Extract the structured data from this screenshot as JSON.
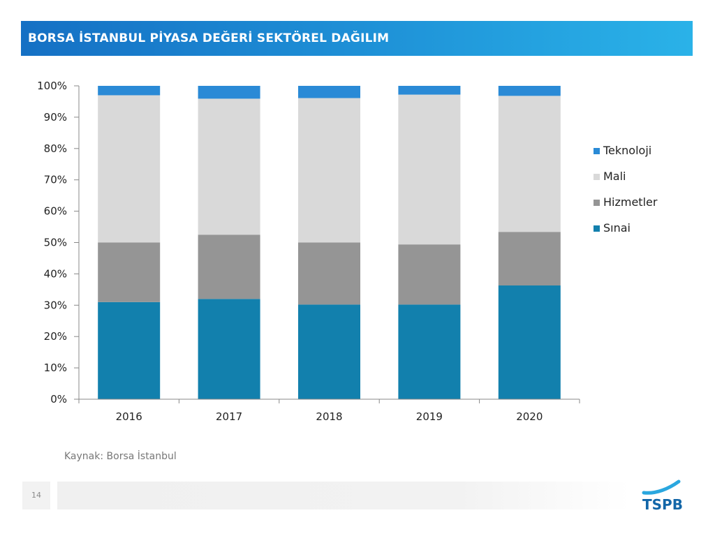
{
  "header": {
    "title": "BORSA İSTANBUL PİYASA DEĞERİ SEKTÖREL DAĞILIM"
  },
  "chart_data": {
    "type": "bar",
    "stacked": true,
    "categories": [
      "2016",
      "2017",
      "2018",
      "2019",
      "2020"
    ],
    "y_ticks": [
      "0%",
      "10%",
      "20%",
      "30%",
      "40%",
      "50%",
      "60%",
      "70%",
      "80%",
      "90%",
      "100%"
    ],
    "ylim": [
      0,
      100
    ],
    "legend_position": "right",
    "series": [
      {
        "name": "Sınai",
        "color": "#1280ad",
        "values": [
          31,
          32,
          30.2,
          30.2,
          36.3
        ]
      },
      {
        "name": "Hizmetler",
        "color": "#959595",
        "values": [
          19,
          20.5,
          19.8,
          19.2,
          17.1
        ]
      },
      {
        "name": "Mali",
        "color": "#d9d9d9",
        "values": [
          47,
          43.4,
          46.1,
          47.8,
          43.4
        ]
      },
      {
        "name": "Teknoloji",
        "color": "#2a8ad6",
        "values": [
          3,
          4.1,
          3.9,
          2.8,
          3.2
        ]
      }
    ],
    "legend_order": [
      "Teknoloji",
      "Mali",
      "Hizmetler",
      "Sınai"
    ]
  },
  "source": "Kaynak: Borsa İstanbul",
  "footer": {
    "page_number": "14",
    "logo_text": "TSPB"
  }
}
